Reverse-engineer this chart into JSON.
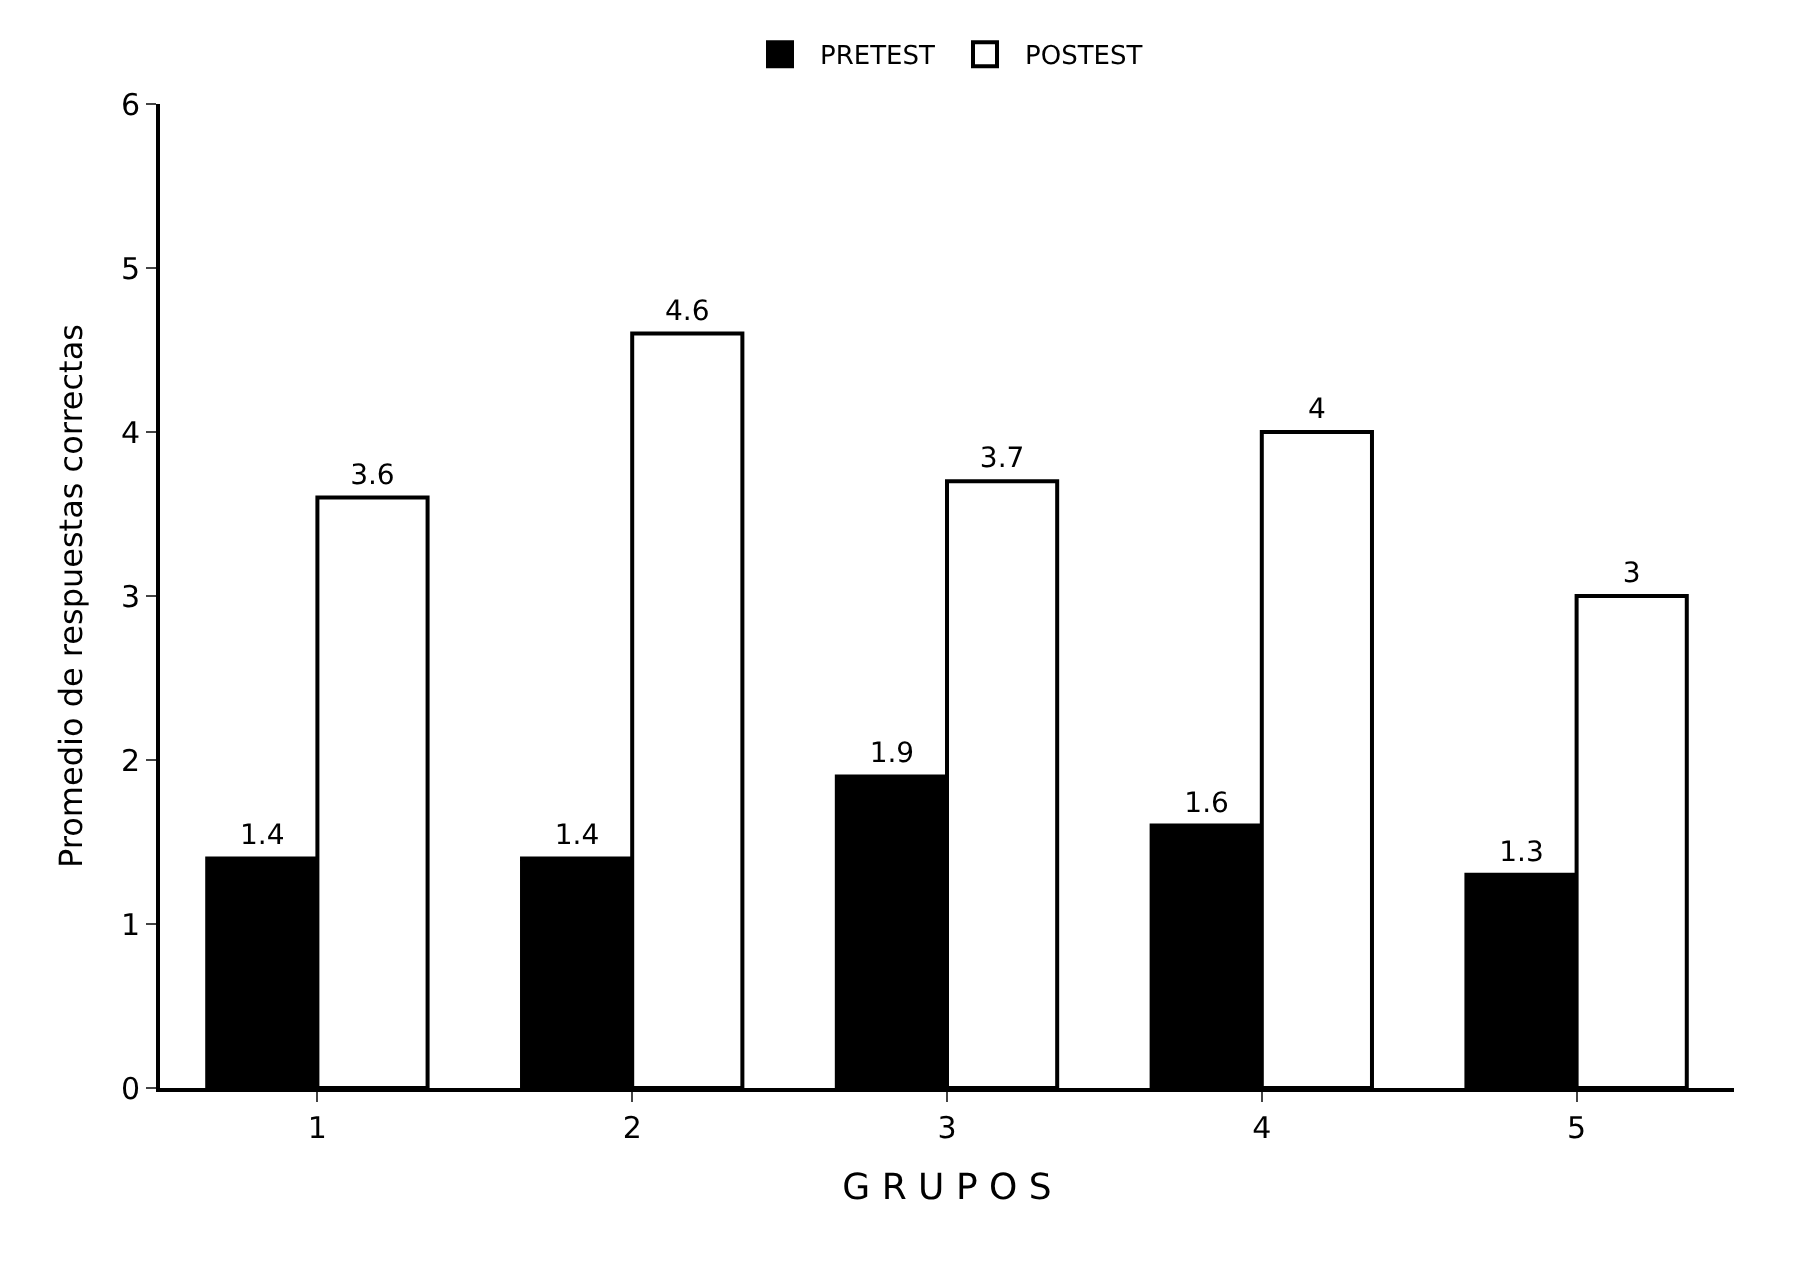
{
  "chart_data": {
    "type": "bar",
    "xlabel": "G R U P O S",
    "ylabel": "Promedio de respuestas correctas",
    "categories": [
      "1",
      "2",
      "3",
      "4",
      "5"
    ],
    "series": [
      {
        "name": "PRETEST",
        "color": "#000000",
        "values": [
          1.4,
          1.4,
          1.9,
          1.6,
          1.3
        ]
      },
      {
        "name": "POSTEST",
        "color": "#ffffff",
        "values": [
          3.6,
          4.6,
          3.7,
          4,
          3
        ]
      }
    ],
    "ylim": [
      0,
      6
    ],
    "yticks": [
      0,
      1,
      2,
      3,
      4,
      5,
      6
    ],
    "legend": "top",
    "data_labels": true
  }
}
